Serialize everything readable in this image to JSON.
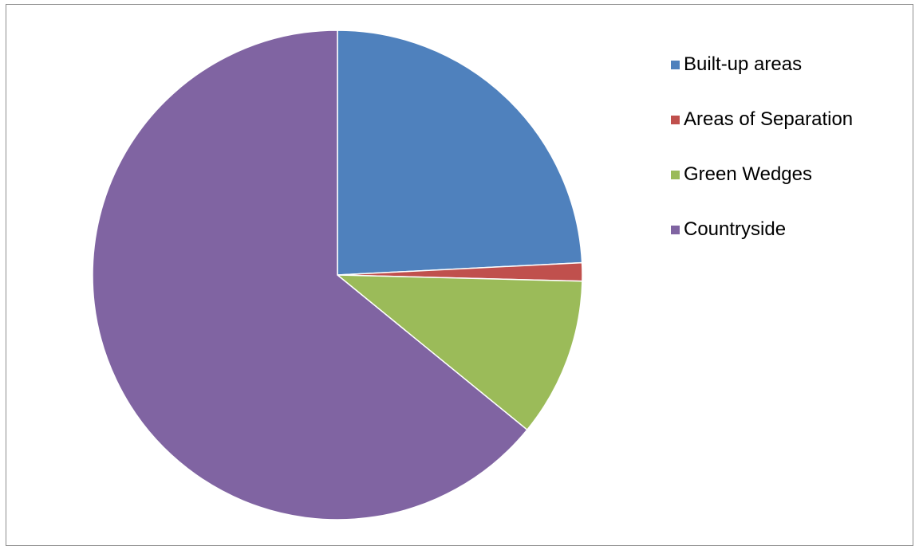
{
  "chart_data": {
    "type": "pie",
    "title": "",
    "legend_position": "right",
    "categories": [
      "Built-up areas",
      "Areas of Separation",
      "Green Wedges",
      "Countryside"
    ],
    "values": [
      24.2,
      1.2,
      10.5,
      64.1
    ],
    "value_unit": "percent",
    "colors": [
      "#4F81BD",
      "#C0504D",
      "#9BBB59",
      "#8064A2"
    ],
    "start_angle": "12 o'clock",
    "direction": "clockwise"
  }
}
